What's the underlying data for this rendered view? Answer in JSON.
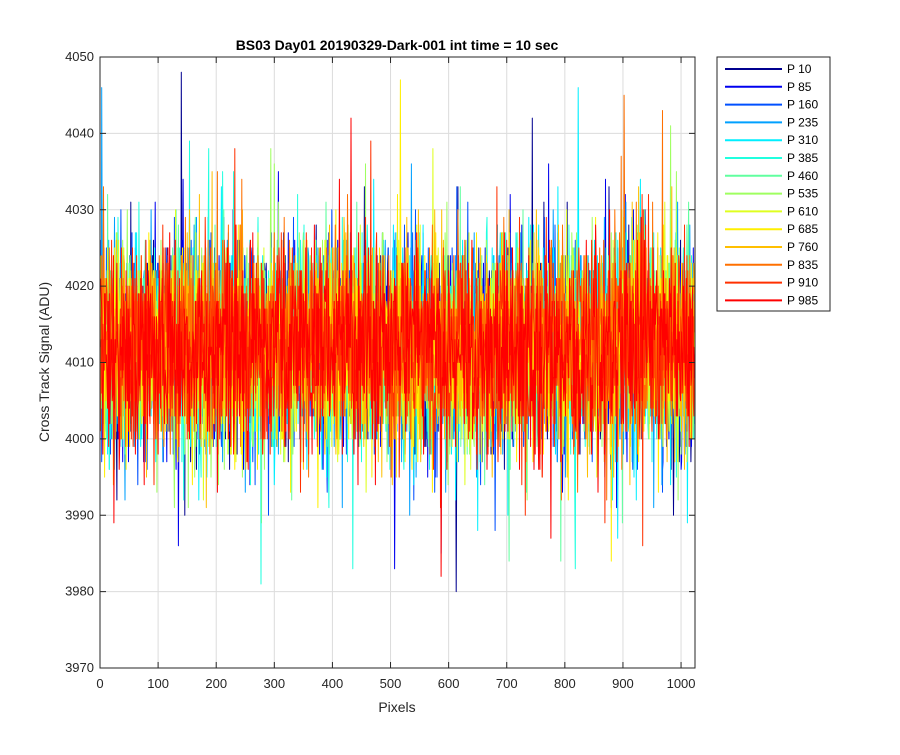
{
  "chart_data": {
    "type": "line",
    "title": "BS03 Day01 20190329-Dark-001 int time = 10 sec",
    "xlabel": "Pixels",
    "ylabel": "Cross Track Signal (ADU)",
    "xlim": [
      0,
      1024
    ],
    "ylim": [
      3970,
      4050
    ],
    "xticks": [
      0,
      100,
      200,
      300,
      400,
      500,
      600,
      700,
      800,
      900,
      1000
    ],
    "yticks": [
      3970,
      3980,
      3990,
      4000,
      4010,
      4020,
      4030,
      4040,
      4050
    ],
    "grid": true,
    "legend_position": "outside-top-right",
    "noise_model": {
      "n_points": 1024,
      "mean": 4012,
      "std": 6.5,
      "min": 3979,
      "max": 4050
    },
    "series": [
      {
        "name": "P 10",
        "color": "#00008f"
      },
      {
        "name": "P 85",
        "color": "#0000ef"
      },
      {
        "name": "P 160",
        "color": "#0050ff"
      },
      {
        "name": "P 235",
        "color": "#00a0ff"
      },
      {
        "name": "P 310",
        "color": "#00efff"
      },
      {
        "name": "P 385",
        "color": "#20ffdf"
      },
      {
        "name": "P 460",
        "color": "#60ff9f"
      },
      {
        "name": "P 535",
        "color": "#9fff60"
      },
      {
        "name": "P 610",
        "color": "#dfff20"
      },
      {
        "name": "P 685",
        "color": "#ffef00"
      },
      {
        "name": "P 760",
        "color": "#ffbf00"
      },
      {
        "name": "P 835",
        "color": "#ff7000"
      },
      {
        "name": "P 910",
        "color": "#ff3000"
      },
      {
        "name": "P 985",
        "color": "#ff0000"
      }
    ]
  }
}
